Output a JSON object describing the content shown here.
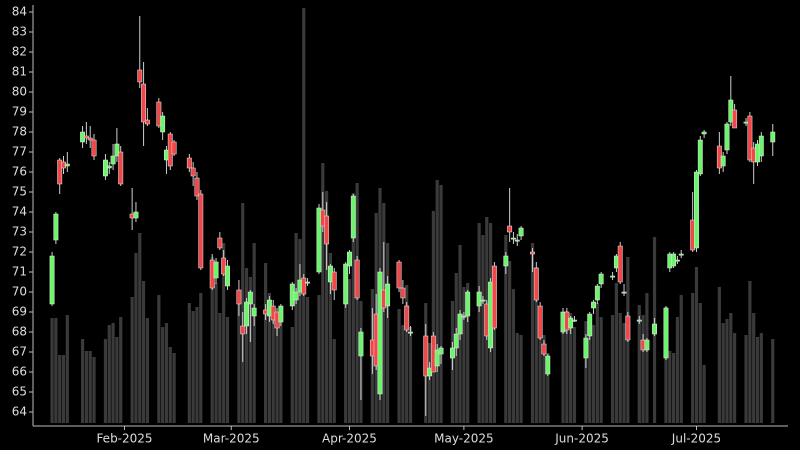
{
  "chart_data": {
    "type": "candlestick",
    "x": [
      "2025-01-13",
      "2025-01-14",
      "2025-01-15",
      "2025-01-16",
      "2025-01-17",
      "2025-01-21",
      "2025-01-22",
      "2025-01-23",
      "2025-01-24",
      "2025-01-27",
      "2025-01-28",
      "2025-01-29",
      "2025-01-30",
      "2025-01-31",
      "2025-02-03",
      "2025-02-04",
      "2025-02-05",
      "2025-02-06",
      "2025-02-07",
      "2025-02-10",
      "2025-02-11",
      "2025-02-12",
      "2025-02-13",
      "2025-02-14",
      "2025-02-18",
      "2025-02-19",
      "2025-02-20",
      "2025-02-21",
      "2025-02-24",
      "2025-02-25",
      "2025-02-26",
      "2025-02-27",
      "2025-02-28",
      "2025-03-03",
      "2025-03-04",
      "2025-03-05",
      "2025-03-06",
      "2025-03-07",
      "2025-03-10",
      "2025-03-11",
      "2025-03-12",
      "2025-03-13",
      "2025-03-14",
      "2025-03-17",
      "2025-03-18",
      "2025-03-19",
      "2025-03-20",
      "2025-03-21",
      "2025-03-24",
      "2025-03-25",
      "2025-03-26",
      "2025-03-27",
      "2025-03-28",
      "2025-03-31",
      "2025-04-01",
      "2025-04-02",
      "2025-04-03",
      "2025-04-04",
      "2025-04-07",
      "2025-04-08",
      "2025-04-09",
      "2025-04-10",
      "2025-04-11",
      "2025-04-14",
      "2025-04-15",
      "2025-04-16",
      "2025-04-17",
      "2025-04-21",
      "2025-04-22",
      "2025-04-23",
      "2025-04-24",
      "2025-04-25",
      "2025-04-28",
      "2025-04-29",
      "2025-04-30",
      "2025-05-01",
      "2025-05-02",
      "2025-05-05",
      "2025-05-06",
      "2025-05-07",
      "2025-05-08",
      "2025-05-09",
      "2025-05-12",
      "2025-05-13",
      "2025-05-14",
      "2025-05-15",
      "2025-05-16",
      "2025-05-19",
      "2025-05-20",
      "2025-05-21",
      "2025-05-22",
      "2025-05-23",
      "2025-05-27",
      "2025-05-28",
      "2025-05-29",
      "2025-05-30",
      "2025-06-02",
      "2025-06-03",
      "2025-06-04",
      "2025-06-05",
      "2025-06-06",
      "2025-06-09",
      "2025-06-10",
      "2025-06-11",
      "2025-06-12",
      "2025-06-13",
      "2025-06-16",
      "2025-06-17",
      "2025-06-18",
      "2025-06-20",
      "2025-06-23",
      "2025-06-24",
      "2025-06-25",
      "2025-06-26",
      "2025-06-27",
      "2025-06-30",
      "2025-07-01",
      "2025-07-02",
      "2025-07-03",
      "2025-07-07",
      "2025-07-08",
      "2025-07-09",
      "2025-07-10",
      "2025-07-11",
      "2025-07-14",
      "2025-07-15",
      "2025-07-16",
      "2025-07-17",
      "2025-07-18",
      "2025-07-21"
    ],
    "open": [
      69.4,
      72.6,
      76.6,
      76.5,
      76.3,
      77.5,
      77.8,
      77.7,
      77.6,
      75.8,
      76.2,
      76.4,
      76.8,
      77.0,
      73.9,
      73.7,
      81.1,
      80.4,
      78.6,
      79.5,
      78.0,
      76.6,
      77.9,
      77.5,
      76.7,
      76.2,
      75.7,
      74.9,
      71.6,
      70.7,
      72.7,
      71.7,
      70.3,
      70.1,
      68.3,
      68.3,
      69.4,
      68.8,
      69.1,
      68.8,
      69.3,
      69.0,
      68.5,
      69.3,
      69.6,
      70.0,
      70.7,
      70.5,
      71.0,
      74.1,
      73.8,
      70.5,
      71.0,
      69.4,
      71.3,
      72.7,
      71.6,
      66.8,
      67.6,
      68.9,
      64.9,
      70.1,
      69.3,
      71.5,
      70.2,
      69.3,
      68.0,
      67.8,
      65.8,
      67.8,
      66.3,
      66.9,
      66.7,
      67.2,
      67.9,
      68.8,
      68.8,
      69.3,
      69.6,
      69.4,
      67.2,
      71.3,
      71.3,
      73.3,
      72.7,
      72.6,
      72.8,
      72.0,
      71.2,
      69.3,
      67.4,
      65.9,
      68.0,
      69.0,
      68.2,
      68.6,
      66.7,
      67.8,
      69.2,
      69.6,
      70.4,
      70.8,
      71.2,
      72.3,
      70.0,
      68.8,
      68.6,
      67.6,
      67.1,
      67.9,
      66.7,
      71.2,
      71.3,
      71.6,
      71.9,
      73.6,
      72.2,
      75.9,
      77.9,
      77.3,
      76.3,
      77.1,
      78.5,
      79.1,
      78.5,
      78.8,
      77.2,
      76.5,
      76.8,
      77.5
    ],
    "high": [
      72.0,
      74.0,
      76.7,
      76.8,
      77.0,
      78.3,
      78.5,
      78.3,
      77.9,
      76.9,
      76.5,
      77.4,
      78.2,
      77.3,
      75.2,
      74.5,
      83.8,
      81.5,
      79.2,
      79.7,
      79.0,
      77.3,
      78.0,
      77.6,
      76.9,
      76.5,
      76.0,
      75.1,
      71.9,
      71.7,
      73.0,
      72.1,
      71.6,
      70.6,
      69.0,
      69.7,
      70.1,
      69.4,
      69.4,
      69.8,
      69.6,
      69.2,
      69.4,
      70.5,
      70.2,
      71.4,
      70.9,
      70.7,
      74.4,
      75.0,
      74.5,
      71.4,
      71.2,
      71.5,
      72.1,
      74.9,
      71.8,
      68.2,
      69.2,
      69.9,
      71.2,
      72.5,
      70.8,
      71.6,
      70.6,
      69.5,
      68.3,
      68.4,
      66.5,
      68.0,
      67.4,
      67.3,
      67.5,
      68.2,
      69.1,
      69.0,
      70.1,
      70.3,
      69.8,
      69.6,
      70.7,
      71.5,
      72.0,
      75.2,
      73.0,
      72.9,
      73.3,
      72.2,
      71.5,
      69.5,
      67.6,
      66.9,
      69.2,
      69.2,
      68.8,
      68.8,
      67.9,
      69.0,
      69.6,
      70.4,
      71.0,
      71.0,
      71.9,
      72.5,
      70.4,
      69.0,
      68.8,
      67.9,
      67.7,
      68.7,
      69.3,
      72.0,
      72.0,
      71.8,
      72.1,
      75.0,
      76.1,
      77.8,
      78.1,
      78.0,
      77.0,
      78.5,
      80.8,
      79.4,
      78.7,
      79.0,
      77.5,
      77.6,
      78.0,
      78.4
    ],
    "low": [
      69.3,
      72.4,
      74.9,
      75.9,
      76.0,
      77.2,
      77.4,
      77.2,
      76.6,
      75.6,
      75.9,
      76.1,
      76.5,
      75.3,
      73.1,
      73.5,
      80.2,
      77.3,
      78.3,
      78.2,
      77.6,
      75.9,
      76.1,
      76.8,
      76.0,
      75.3,
      74.6,
      71.1,
      70.1,
      70.4,
      72.1,
      70.8,
      70.1,
      68.8,
      66.5,
      67.9,
      67.5,
      68.3,
      68.6,
      68.5,
      68.4,
      67.8,
      68.3,
      69.1,
      69.4,
      69.8,
      69.8,
      70.3,
      70.9,
      73.0,
      71.1,
      69.9,
      69.6,
      69.2,
      70.9,
      72.5,
      69.6,
      64.6,
      65.9,
      66.1,
      64.6,
      69.0,
      68.7,
      70.0,
      69.4,
      68.0,
      67.8,
      63.8,
      65.6,
      66.0,
      66.0,
      66.4,
      66.1,
      66.8,
      67.6,
      68.6,
      68.5,
      69.0,
      69.4,
      67.6,
      67.0,
      68.1,
      70.9,
      72.5,
      72.4,
      72.3,
      72.6,
      71.0,
      69.5,
      67.6,
      66.8,
      65.8,
      67.9,
      67.9,
      67.9,
      68.5,
      66.2,
      67.6,
      68.9,
      69.4,
      70.2,
      70.6,
      71.0,
      70.4,
      69.8,
      67.5,
      68.4,
      67.0,
      67.0,
      67.8,
      66.6,
      71.0,
      71.2,
      71.4,
      71.7,
      72.0,
      72.0,
      75.8,
      77.7,
      75.9,
      76.0,
      76.9,
      78.3,
      78.2,
      78.3,
      76.5,
      75.4,
      76.3,
      76.5,
      76.8
    ],
    "close": [
      71.8,
      73.9,
      75.4,
      76.2,
      76.4,
      78.0,
      77.7,
      77.6,
      76.8,
      76.6,
      76.3,
      76.8,
      77.4,
      75.4,
      73.7,
      74.0,
      80.5,
      78.5,
      78.4,
      78.3,
      78.8,
      77.1,
      76.3,
      76.9,
      76.2,
      75.8,
      74.8,
      71.2,
      70.2,
      71.5,
      72.2,
      70.9,
      71.3,
      69.4,
      67.9,
      69.5,
      70.0,
      69.2,
      68.9,
      69.6,
      68.6,
      68.2,
      69.3,
      70.4,
      70.0,
      70.6,
      69.9,
      70.5,
      74.2,
      73.3,
      72.4,
      71.3,
      70.1,
      71.4,
      72.0,
      74.8,
      69.7,
      68.0,
      66.8,
      66.3,
      71.0,
      69.2,
      70.4,
      70.2,
      69.7,
      68.1,
      68.0,
      65.8,
      66.2,
      66.0,
      67.1,
      67.2,
      67.2,
      67.9,
      68.9,
      68.8,
      70.0,
      70.0,
      69.6,
      67.8,
      70.5,
      68.2,
      71.8,
      73.0,
      72.7,
      72.6,
      73.2,
      71.9,
      69.6,
      67.7,
      66.9,
      66.8,
      69.0,
      68.1,
      68.7,
      68.6,
      67.7,
      68.9,
      69.5,
      70.3,
      70.9,
      70.8,
      71.8,
      70.5,
      70.0,
      67.6,
      68.6,
      67.1,
      67.6,
      68.4,
      69.2,
      71.9,
      71.9,
      71.6,
      71.9,
      72.1,
      76.0,
      77.6,
      78.0,
      76.2,
      76.8,
      78.4,
      79.6,
      78.2,
      78.5,
      76.6,
      76.5,
      77.4,
      77.8,
      78.0
    ],
    "volume": [
      105,
      105,
      68,
      68,
      108,
      84,
      72,
      72,
      66,
      84,
      98,
      100,
      86,
      106,
      126,
      170,
      190,
      142,
      105,
      128,
      96,
      100,
      76,
      70,
      120,
      112,
      116,
      130,
      166,
      140,
      110,
      180,
      106,
      120,
      220,
      155,
      146,
      180,
      160,
      130,
      110,
      104,
      110,
      96,
      190,
      184,
      415,
      126,
      128,
      260,
      232,
      170,
      84,
      132,
      144,
      230,
      240,
      122,
      134,
      210,
      235,
      220,
      180,
      114,
      98,
      138,
      96,
      120,
      80,
      212,
      243,
      238,
      122,
      150,
      178,
      136,
      140,
      200,
      188,
      206,
      200,
      152,
      188,
      162,
      134,
      90,
      88,
      180,
      156,
      112,
      88,
      70,
      106,
      112,
      110,
      96,
      102,
      88,
      98,
      120,
      106,
      108,
      140,
      110,
      100,
      166,
      118,
      108,
      130,
      186,
      116,
      72,
      70,
      106,
      128,
      130,
      156,
      120,
      58,
      136,
      100,
      104,
      110,
      90,
      88,
      142,
      110,
      86,
      90,
      84
    ],
    "xlim": [
      "2025-01-08",
      "2025-07-25"
    ],
    "ylim": [
      63.3,
      84.35
    ],
    "yticks": [
      64,
      65,
      66,
      67,
      68,
      69,
      70,
      71,
      72,
      73,
      74,
      75,
      76,
      77,
      78,
      79,
      80,
      81,
      82,
      83,
      84
    ],
    "xticks": [
      {
        "value": "2025-02-01",
        "label": "Feb-2025"
      },
      {
        "value": "2025-03-01",
        "label": "Mar-2025"
      },
      {
        "value": "2025-04-01",
        "label": "Apr-2025"
      },
      {
        "value": "2025-05-01",
        "label": "May-2025"
      },
      {
        "value": "2025-06-01",
        "label": "Jun-2025"
      },
      {
        "value": "2025-07-01",
        "label": "Jul-2025"
      }
    ],
    "up_color": "#6af56a",
    "down_color": "#f04848",
    "volume_color": "#3a3a3a"
  }
}
